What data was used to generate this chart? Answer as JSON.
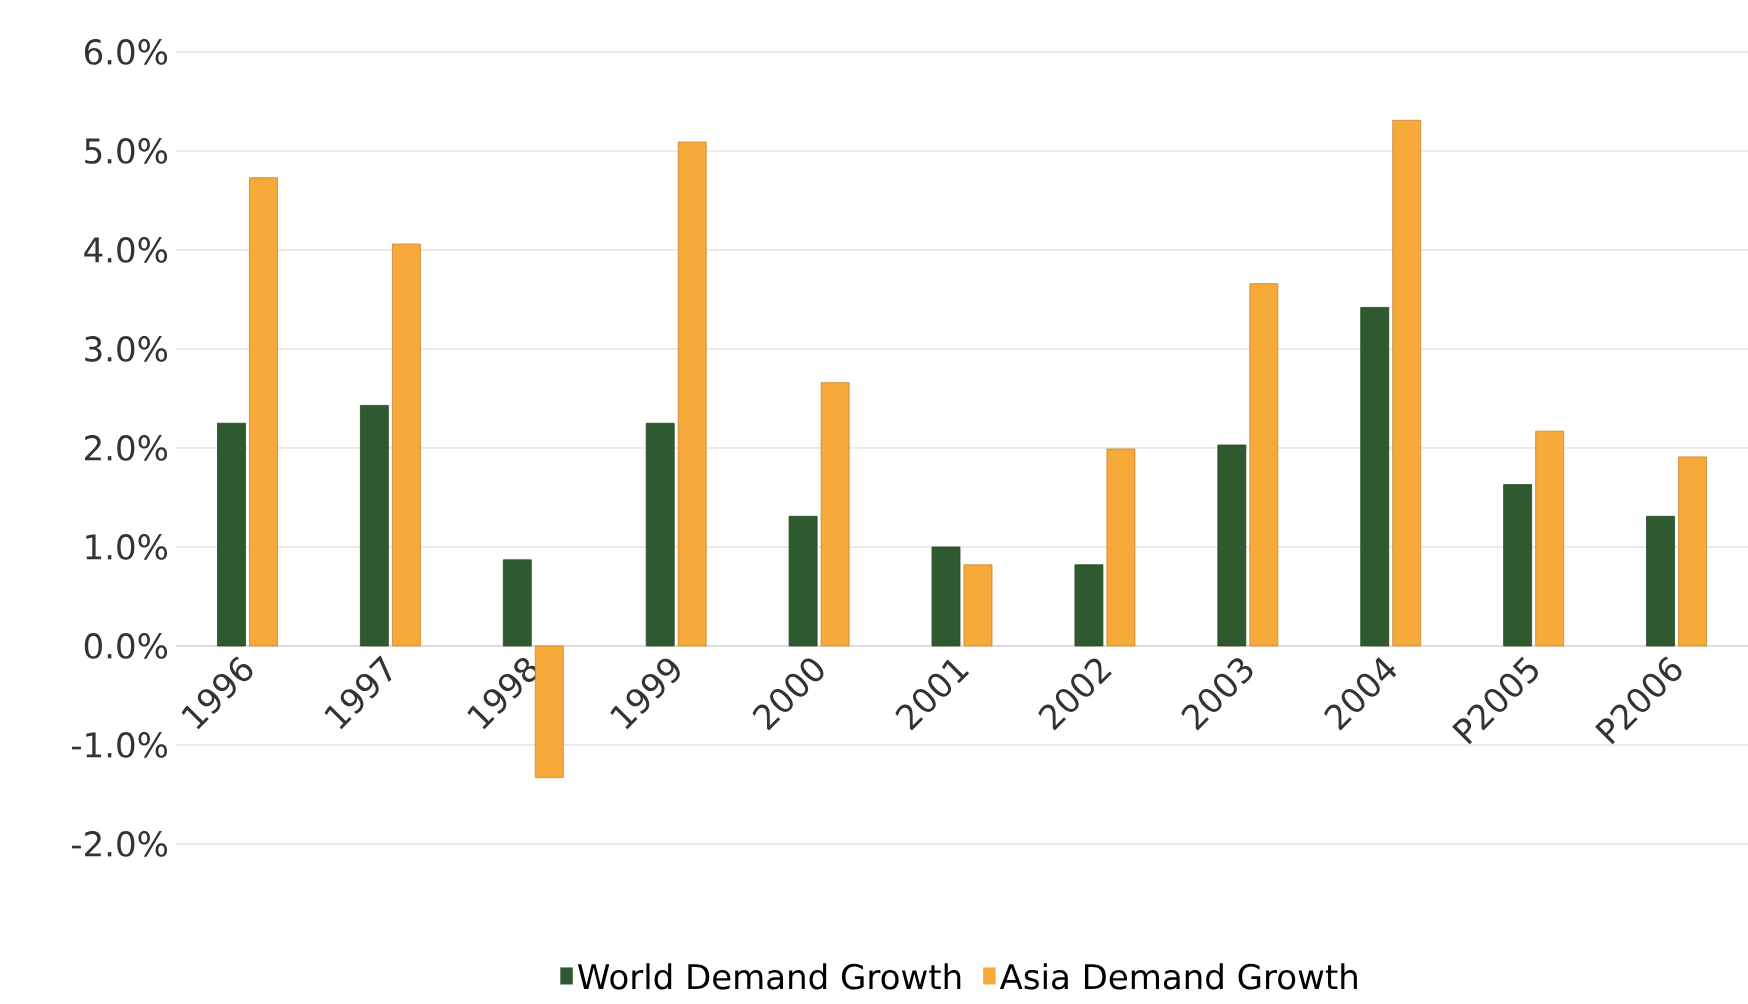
{
  "chart_data": {
    "type": "bar",
    "categories": [
      "1996",
      "1997",
      "1998",
      "1999",
      "2000",
      "2001",
      "2002",
      "2003",
      "2004",
      "P2005",
      "P2006"
    ],
    "series": [
      {
        "name": "World Demand Growth",
        "color": "#2f5a2f",
        "values": [
          2.25,
          2.43,
          0.87,
          2.25,
          1.31,
          1.0,
          0.82,
          2.03,
          3.42,
          1.63,
          1.31
        ]
      },
      {
        "name": "Asia Demand Growth",
        "color": "#f7a93a",
        "values": [
          4.73,
          4.06,
          -1.33,
          5.09,
          2.66,
          0.82,
          1.99,
          3.66,
          5.31,
          2.17,
          1.91
        ]
      }
    ],
    "ylim": [
      -2,
      6
    ],
    "yticks": [
      {
        "value": -2,
        "label": "-2.0%"
      },
      {
        "value": -1,
        "label": "-1.0%"
      },
      {
        "value": 0,
        "label": "0.0%"
      },
      {
        "value": 1,
        "label": "1.0%"
      },
      {
        "value": 2,
        "label": "2.0%"
      },
      {
        "value": 3,
        "label": "3.0%"
      },
      {
        "value": 4,
        "label": "4.0%"
      },
      {
        "value": 5,
        "label": "5.0%"
      },
      {
        "value": 6,
        "label": "6.0%"
      }
    ],
    "grid": "y",
    "legend": "bottom"
  }
}
